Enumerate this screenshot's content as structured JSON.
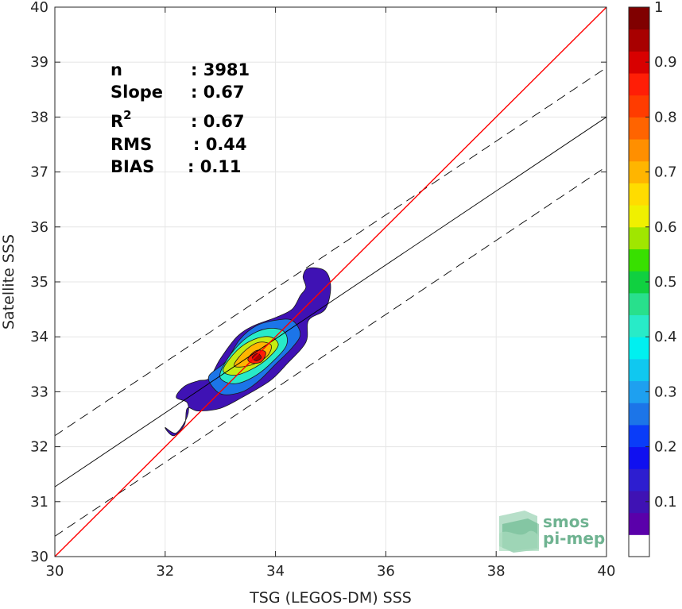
{
  "chart_data": {
    "type": "scatter",
    "subtype": "density-contour",
    "xlabel": "TSG (LEGOS-DM) SSS",
    "ylabel": "Satellite SSS",
    "xlim": [
      30,
      40
    ],
    "ylim": [
      30,
      40
    ],
    "x_ticks": [
      "30",
      "32",
      "34",
      "36",
      "38",
      "40"
    ],
    "y_ticks": [
      "30",
      "31",
      "32",
      "33",
      "34",
      "35",
      "36",
      "37",
      "38",
      "39",
      "40"
    ],
    "grid": true,
    "stats": [
      {
        "label": "n",
        "value": ": 3981"
      },
      {
        "label": "Slope",
        "value": ": 0.67"
      },
      {
        "label": "R",
        "sup": "2",
        "value": ": 0.67"
      },
      {
        "label": "RMS",
        "value": ": 0.44"
      },
      {
        "label": "BIAS",
        "value": ": 0.11"
      }
    ],
    "identity_line": {
      "color": "#ff0000",
      "x": [
        30,
        40
      ],
      "y": [
        30,
        40
      ]
    },
    "regression_line": {
      "color": "#000000",
      "x": [
        30,
        40
      ],
      "y": [
        31.27,
        38.0
      ]
    },
    "confidence_lines": [
      {
        "color": "#000000",
        "dash": true,
        "x": [
          30,
          40
        ],
        "y": [
          32.2,
          38.9
        ]
      },
      {
        "color": "#000000",
        "dash": true,
        "x": [
          30,
          40
        ],
        "y": [
          30.37,
          37.1
        ]
      }
    ],
    "density_levels": [
      {
        "level": 0.05,
        "color": "#3f12b4",
        "points": [
          [
            32.0,
            32.35
          ],
          [
            32.2,
            32.25
          ],
          [
            32.4,
            32.55
          ],
          [
            32.4,
            32.8
          ],
          [
            32.2,
            32.9
          ],
          [
            32.35,
            33.1
          ],
          [
            32.6,
            33.2
          ],
          [
            32.8,
            33.25
          ],
          [
            33.0,
            33.6
          ],
          [
            33.3,
            34.0
          ],
          [
            33.6,
            34.2
          ],
          [
            34.0,
            34.35
          ],
          [
            34.3,
            34.5
          ],
          [
            34.45,
            34.75
          ],
          [
            34.55,
            34.9
          ],
          [
            34.5,
            35.1
          ],
          [
            34.6,
            35.25
          ],
          [
            34.9,
            35.2
          ],
          [
            35.0,
            34.9
          ],
          [
            34.9,
            34.5
          ],
          [
            34.6,
            34.3
          ],
          [
            34.55,
            33.9
          ],
          [
            34.2,
            33.5
          ],
          [
            33.9,
            33.2
          ],
          [
            33.4,
            32.9
          ],
          [
            33.0,
            32.7
          ],
          [
            32.6,
            32.65
          ],
          [
            32.4,
            32.7
          ],
          [
            32.35,
            32.4
          ],
          [
            32.15,
            32.2
          ]
        ]
      },
      {
        "level": 0.25,
        "color": "#1c75e8",
        "points": [
          [
            32.8,
            33.3
          ],
          [
            33.1,
            33.55
          ],
          [
            33.35,
            33.95
          ],
          [
            33.65,
            34.2
          ],
          [
            34.0,
            34.3
          ],
          [
            34.3,
            34.3
          ],
          [
            34.45,
            34.05
          ],
          [
            34.3,
            33.8
          ],
          [
            34.0,
            33.5
          ],
          [
            33.7,
            33.2
          ],
          [
            33.4,
            33.0
          ],
          [
            33.05,
            32.95
          ],
          [
            32.85,
            33.1
          ]
        ]
      },
      {
        "level": 0.45,
        "color": "#28ebc8",
        "points": [
          [
            33.0,
            33.35
          ],
          [
            33.2,
            33.7
          ],
          [
            33.5,
            34.0
          ],
          [
            33.85,
            34.15
          ],
          [
            34.15,
            34.1
          ],
          [
            34.2,
            33.85
          ],
          [
            33.95,
            33.55
          ],
          [
            33.65,
            33.3
          ],
          [
            33.3,
            33.15
          ],
          [
            33.05,
            33.2
          ]
        ]
      },
      {
        "level": 0.6,
        "color": "#c4ec12",
        "points": [
          [
            33.05,
            33.4
          ],
          [
            33.3,
            33.75
          ],
          [
            33.6,
            33.95
          ],
          [
            33.9,
            34.0
          ],
          [
            34.05,
            33.85
          ],
          [
            33.85,
            33.6
          ],
          [
            33.55,
            33.4
          ],
          [
            33.25,
            33.3
          ]
        ]
      },
      {
        "level": 0.75,
        "color": "#ffb500",
        "points": [
          [
            33.25,
            33.5
          ],
          [
            33.45,
            33.75
          ],
          [
            33.7,
            33.9
          ],
          [
            33.92,
            33.85
          ],
          [
            33.85,
            33.65
          ],
          [
            33.6,
            33.5
          ],
          [
            33.35,
            33.45
          ]
        ]
      },
      {
        "level": 0.9,
        "color": "#ff1e06",
        "points": [
          [
            33.5,
            33.6
          ],
          [
            33.65,
            33.75
          ],
          [
            33.82,
            33.72
          ],
          [
            33.75,
            33.55
          ],
          [
            33.58,
            33.52
          ]
        ]
      },
      {
        "level": 1.0,
        "color": "#a80000",
        "points": [
          [
            33.58,
            33.63
          ],
          [
            33.68,
            33.7
          ],
          [
            33.74,
            33.62
          ],
          [
            33.65,
            33.56
          ]
        ]
      }
    ],
    "colorbar": {
      "ticks": [
        "0.1",
        "0.2",
        "0.3",
        "0.4",
        "0.5",
        "0.6",
        "0.7",
        "0.8",
        "0.9",
        "1"
      ],
      "colors": [
        "#ffffff",
        "#5a00aa",
        "#3f12b4",
        "#2d1ed0",
        "#1010f0",
        "#0a3cf8",
        "#1c75e8",
        "#1ea0f0",
        "#10c8f0",
        "#00f0f0",
        "#28ebc8",
        "#28e08c",
        "#10d040",
        "#38e000",
        "#a0e600",
        "#f0f000",
        "#ffdc00",
        "#ffb500",
        "#ff8f00",
        "#ff6400",
        "#ff3c00",
        "#ff1e06",
        "#d80000",
        "#a80000",
        "#800000"
      ]
    }
  },
  "logo": {
    "line1": "smos",
    "line2": "pi-mep"
  }
}
